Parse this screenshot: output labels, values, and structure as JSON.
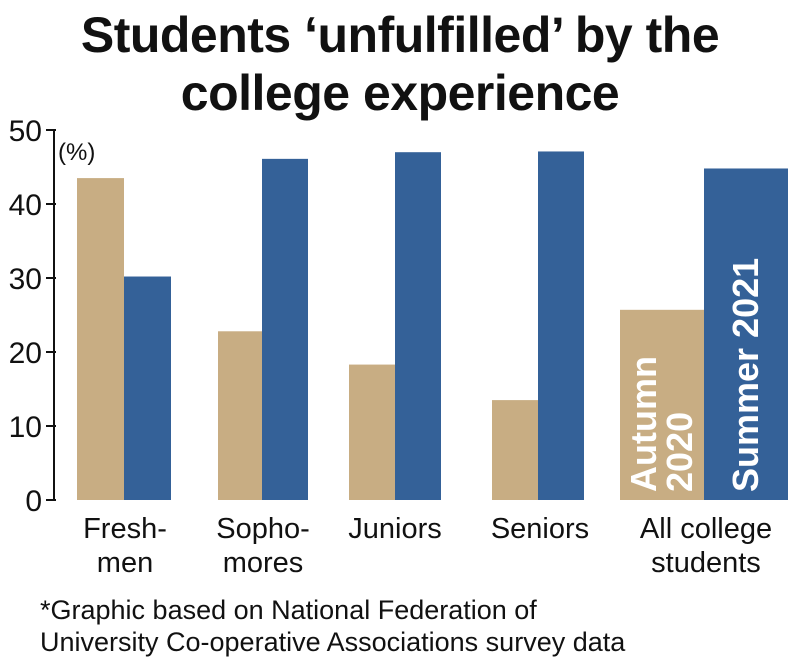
{
  "title_lines": [
    "Students ‘unfulfilled’ by the",
    "college experience"
  ],
  "footnote_lines": [
    "*Graphic based on National Federation of",
    "University Co-operative Associations survey data"
  ],
  "chart_data": {
    "type": "bar",
    "title": "Students ‘unfulfilled’ by the college experience",
    "unit_label": "(%)",
    "categories": [
      [
        "Fresh-",
        "men"
      ],
      [
        "Sopho-",
        "mores"
      ],
      [
        "Juniors"
      ],
      [
        "Seniors"
      ],
      [
        "All college",
        "students"
      ]
    ],
    "series": [
      {
        "name": "Autumn 2020",
        "label_lines": [
          "Autumn",
          "2020"
        ],
        "color": "#c8ad83",
        "values": [
          43.5,
          22.8,
          18.3,
          13.5,
          25.7
        ]
      },
      {
        "name": "Summer 2021",
        "label_lines": [
          "Summer 2021"
        ],
        "color": "#346198",
        "values": [
          30.2,
          46.1,
          47.0,
          47.1,
          44.8
        ]
      }
    ],
    "ylim": [
      0,
      50
    ],
    "yticks": [
      0,
      10,
      20,
      30,
      40,
      50
    ],
    "grid": false,
    "legend": "inside last category bars"
  }
}
